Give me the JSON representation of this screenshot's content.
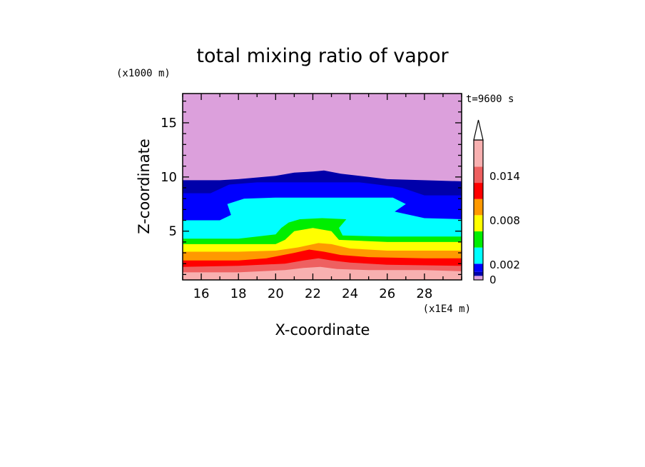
{
  "chart_data": {
    "type": "heatmap",
    "title": "total mixing ratio of vapor",
    "xlabel": "X-coordinate",
    "ylabel": "Z-coordinate",
    "x_unit": "(x1E4 m)",
    "y_unit": "(x1000 m)",
    "time_label": "t=9600 s",
    "xlim": [
      15,
      30
    ],
    "ylim": [
      0.5,
      17.7
    ],
    "x_ticks": [
      16,
      18,
      20,
      22,
      24,
      26,
      28
    ],
    "y_ticks": [
      5,
      10,
      15
    ],
    "grid": false,
    "colorbar": {
      "placement": "right",
      "levels": [
        0,
        0.001,
        0.002,
        0.004,
        0.006,
        0.008,
        0.01,
        0.012,
        0.014
      ],
      "labels": [
        "0",
        "0.002",
        "0.008",
        "0.014"
      ],
      "label_values": [
        0,
        0.002,
        0.008,
        0.014
      ],
      "colors": [
        "#dca0dc",
        "#0000aa",
        "#0000ff",
        "#00ffff",
        "#00ee00",
        "#ffff00",
        "#ff9900",
        "#ff0000",
        "#ee6060",
        "#f8b0b0"
      ],
      "extend": "max"
    },
    "layers": [
      {
        "color": "#0000aa",
        "z_top": [
          [
            15,
            9.7
          ],
          [
            17,
            9.7
          ],
          [
            18,
            9.8
          ],
          [
            20,
            10.1
          ],
          [
            21,
            10.4
          ],
          [
            22,
            10.5
          ],
          [
            22.6,
            10.6
          ],
          [
            23.5,
            10.3
          ],
          [
            25,
            10.0
          ],
          [
            26,
            9.8
          ],
          [
            28,
            9.7
          ],
          [
            30,
            9.6
          ]
        ]
      },
      {
        "color": "#0000ff",
        "z_top": [
          [
            15,
            8.5
          ],
          [
            16.5,
            8.5
          ],
          [
            17.5,
            9.3
          ],
          [
            19,
            9.5
          ],
          [
            22,
            9.5
          ],
          [
            24.5,
            9.5
          ],
          [
            25.5,
            9.3
          ],
          [
            26.8,
            9.0
          ],
          [
            28,
            8.3
          ],
          [
            30,
            8.3
          ]
        ]
      },
      {
        "color": "#00ffff",
        "z_top": [
          [
            15,
            6.0
          ],
          [
            17,
            6.0
          ],
          [
            17.6,
            6.5
          ],
          [
            17.4,
            7.5
          ],
          [
            18.3,
            8.0
          ],
          [
            20,
            8.1
          ],
          [
            23,
            8.1
          ],
          [
            26.3,
            8.1
          ],
          [
            27,
            7.5
          ],
          [
            26.4,
            6.8
          ],
          [
            28,
            6.2
          ],
          [
            30,
            6.1
          ]
        ]
      },
      {
        "color": "#00ee00",
        "z_top": [
          [
            15,
            4.3
          ],
          [
            18,
            4.3
          ],
          [
            20,
            4.7
          ],
          [
            20.3,
            5.3
          ],
          [
            20.7,
            5.8
          ],
          [
            21.3,
            6.1
          ],
          [
            22.5,
            6.2
          ],
          [
            23.8,
            6.1
          ],
          [
            23.4,
            5.3
          ],
          [
            23.6,
            4.6
          ],
          [
            26,
            4.5
          ],
          [
            30,
            4.5
          ]
        ]
      },
      {
        "color": "#ffff00",
        "z_top": [
          [
            15,
            3.8
          ],
          [
            18,
            3.8
          ],
          [
            20,
            3.8
          ],
          [
            20.5,
            4.2
          ],
          [
            21,
            5.0
          ],
          [
            22,
            5.3
          ],
          [
            23,
            5.0
          ],
          [
            23.4,
            4.2
          ],
          [
            26,
            4.0
          ],
          [
            30,
            4.0
          ]
        ]
      },
      {
        "color": "#ff9900",
        "z_top": [
          [
            15,
            3.1
          ],
          [
            18,
            3.1
          ],
          [
            20,
            3.2
          ],
          [
            21.2,
            3.5
          ],
          [
            22.3,
            3.9
          ],
          [
            23,
            3.8
          ],
          [
            24,
            3.4
          ],
          [
            26,
            3.2
          ],
          [
            30,
            3.2
          ]
        ]
      },
      {
        "color": "#ff0000",
        "z_top": [
          [
            15,
            2.3
          ],
          [
            18,
            2.3
          ],
          [
            19.5,
            2.5
          ],
          [
            21,
            3.0
          ],
          [
            21.8,
            3.3
          ],
          [
            22.6,
            3.1
          ],
          [
            23.5,
            2.8
          ],
          [
            25,
            2.6
          ],
          [
            28,
            2.5
          ],
          [
            30,
            2.5
          ]
        ]
      },
      {
        "color": "#ee6060",
        "z_top": [
          [
            15,
            1.7
          ],
          [
            18,
            1.8
          ],
          [
            20.5,
            2.0
          ],
          [
            21.5,
            2.3
          ],
          [
            22.3,
            2.5
          ],
          [
            23,
            2.3
          ],
          [
            24,
            2.1
          ],
          [
            26,
            1.9
          ],
          [
            30,
            1.8
          ]
        ]
      },
      {
        "color": "#f8b0b0",
        "z_top": [
          [
            15,
            1.2
          ],
          [
            18,
            1.2
          ],
          [
            20.5,
            1.4
          ],
          [
            21.5,
            1.6
          ],
          [
            22.4,
            1.7
          ],
          [
            23.3,
            1.5
          ],
          [
            25,
            1.4
          ],
          [
            28,
            1.4
          ],
          [
            30,
            1.3
          ]
        ]
      }
    ]
  }
}
